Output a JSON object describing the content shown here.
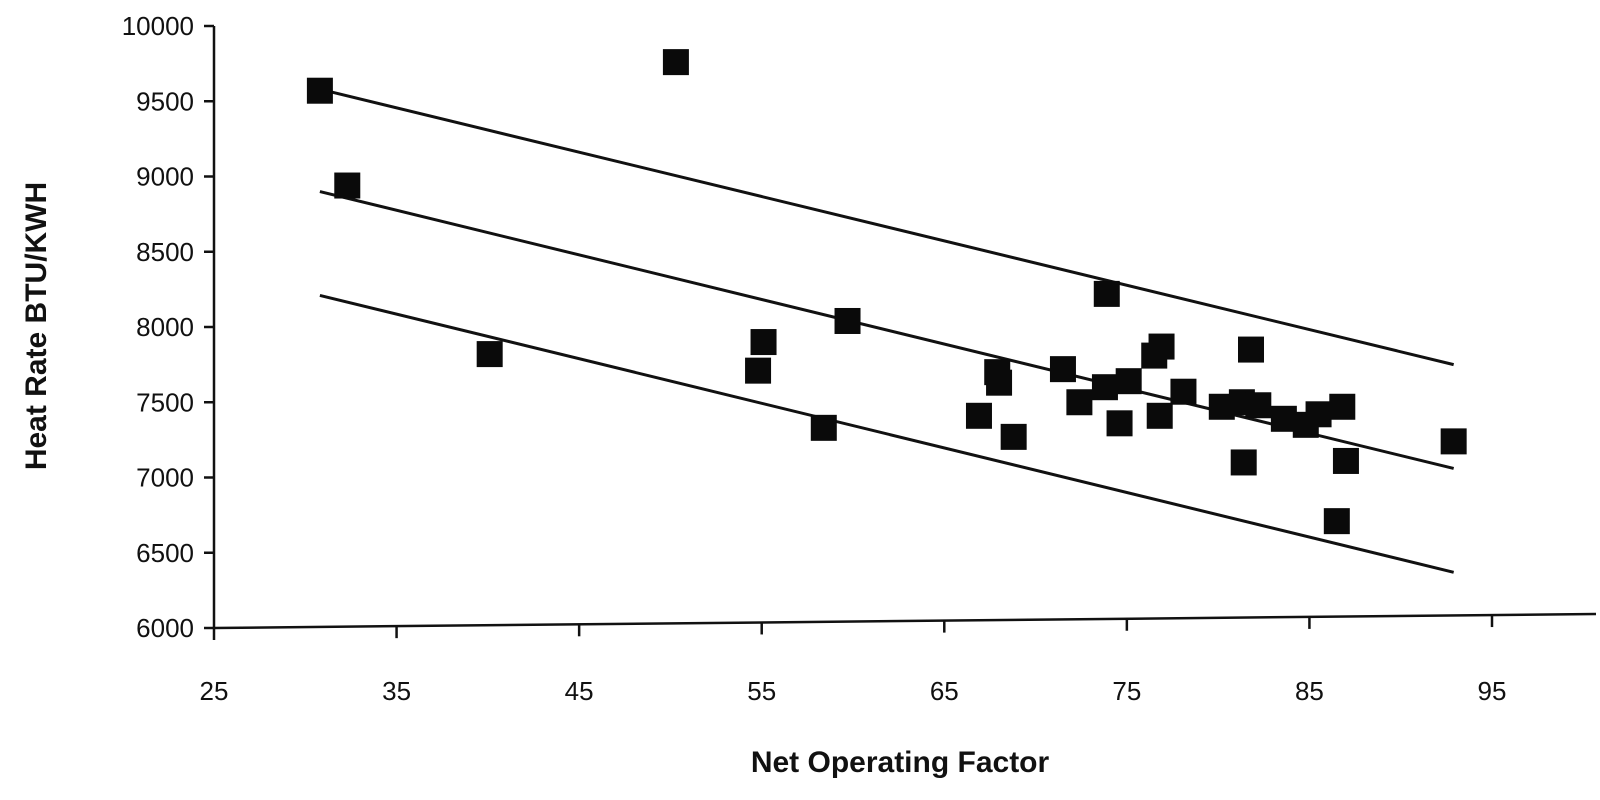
{
  "chart_data": {
    "type": "scatter",
    "xlabel": "Net Operating Factor",
    "ylabel": "Heat Rate BTU/KWH",
    "xlim": [
      25,
      95
    ],
    "ylim": [
      6000,
      10000
    ],
    "x_ticks": [
      25,
      35,
      45,
      55,
      65,
      75,
      85,
      95
    ],
    "y_ticks": [
      6000,
      6500,
      7000,
      7500,
      8000,
      8500,
      9000,
      9500,
      10000
    ],
    "grid": false,
    "legend": "none",
    "marker": "square",
    "marker_color": "#0a0a0a",
    "series": [
      {
        "points": [
          [
            30.8,
            9570
          ],
          [
            32.3,
            8940
          ],
          [
            40.1,
            7820
          ],
          [
            50.3,
            9760
          ],
          [
            54.8,
            7710
          ],
          [
            55.1,
            7900
          ],
          [
            58.4,
            7330
          ],
          [
            59.7,
            8040
          ],
          [
            66.9,
            7410
          ],
          [
            67.9,
            7700
          ],
          [
            68.0,
            7630
          ],
          [
            68.8,
            7270
          ],
          [
            71.5,
            7720
          ],
          [
            72.4,
            7500
          ],
          [
            73.9,
            8220
          ],
          [
            73.8,
            7600
          ],
          [
            74.6,
            7360
          ],
          [
            75.1,
            7640
          ],
          [
            76.5,
            7810
          ],
          [
            76.9,
            7870
          ],
          [
            76.8,
            7410
          ],
          [
            78.1,
            7570
          ],
          [
            80.2,
            7470
          ],
          [
            81.3,
            7500
          ],
          [
            81.4,
            7100
          ],
          [
            81.8,
            7850
          ],
          [
            82.2,
            7480
          ],
          [
            83.6,
            7390
          ],
          [
            84.8,
            7350
          ],
          [
            85.5,
            7420
          ],
          [
            86.5,
            6710
          ],
          [
            86.8,
            7470
          ],
          [
            87.0,
            7110
          ],
          [
            92.9,
            7240
          ]
        ]
      }
    ],
    "lines": [
      {
        "x": [
          30.8,
          92.9
        ],
        "y": [
          9580,
          7750
        ]
      },
      {
        "x": [
          30.8,
          92.9
        ],
        "y": [
          8900,
          7060
        ]
      },
      {
        "x": [
          30.8,
          92.9
        ],
        "y": [
          8210,
          6370
        ]
      }
    ]
  }
}
